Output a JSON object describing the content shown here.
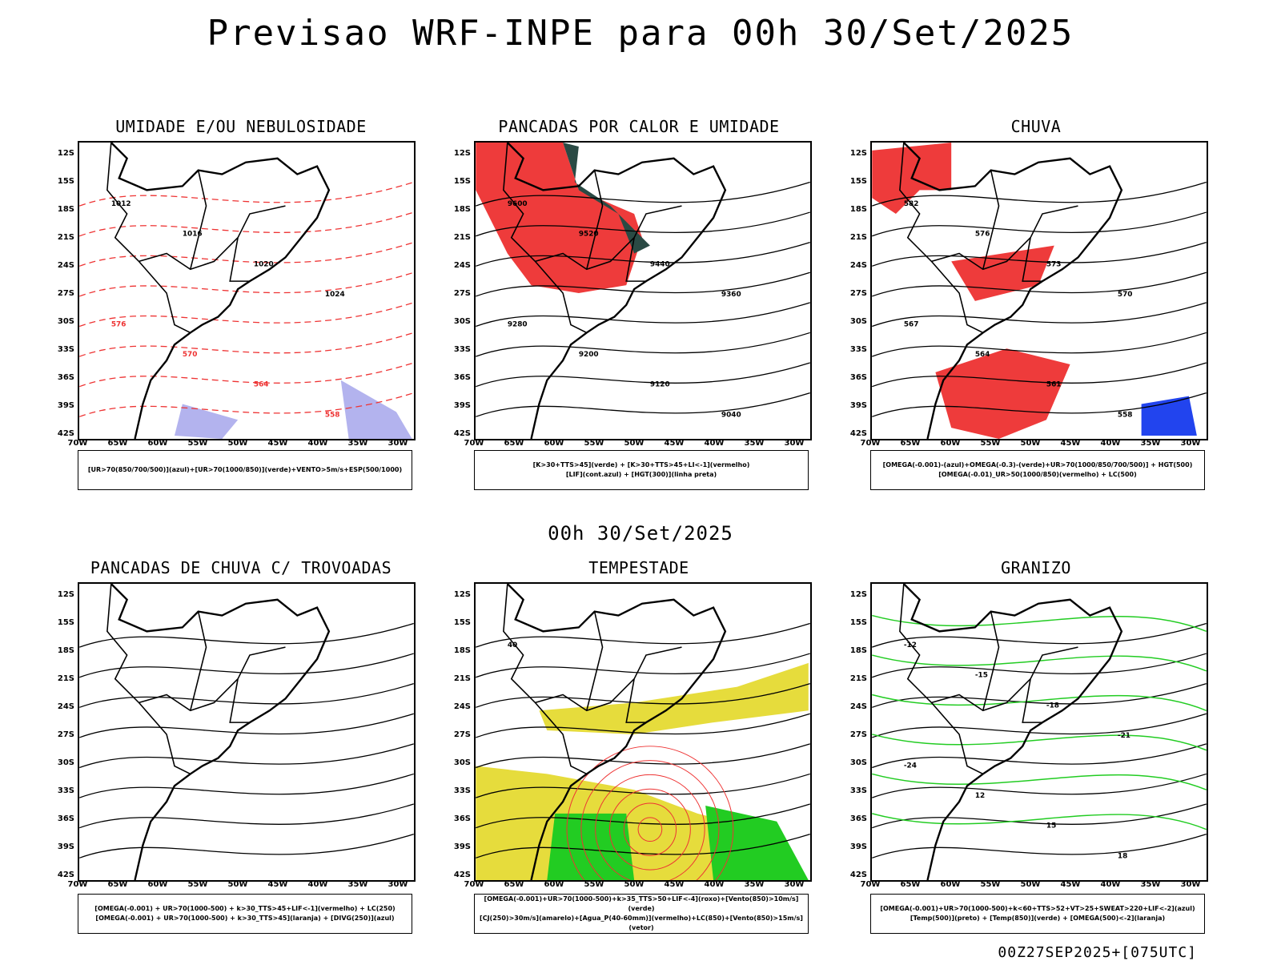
{
  "header": {
    "title": "Previsao WRF-INPE  para 00h 30/Set/2025",
    "mid_title": "00h 30/Set/2025",
    "footer": "00Z27SEP2025+[075UTC]"
  },
  "axes": {
    "lat_labels": [
      "12S",
      "15S",
      "18S",
      "21S",
      "24S",
      "27S",
      "30S",
      "33S",
      "36S",
      "39S",
      "42S"
    ],
    "lon_labels": [
      "70W",
      "65W",
      "60W",
      "55W",
      "50W",
      "45W",
      "40W",
      "35W",
      "30W"
    ]
  },
  "panels": [
    {
      "title": "UMIDADE E/OU NEBULOSIDADE",
      "legend": [
        "[UR>70(850/700/500)](azul)+[UR>70(1000/850)](verde)+VENTO>5m/s+ESP(500/1000)"
      ],
      "contour_labels": [
        "1012",
        "1016",
        "1020",
        "1024",
        "576",
        "570",
        "564",
        "558"
      ],
      "colors": {
        "fill": "#b3b3ee",
        "green": "#22cc22",
        "red": "#ee3333"
      }
    },
    {
      "title": "PANCADAS POR CALOR E UMIDADE",
      "legend": [
        "[K>30+TTS>45](verde) + [K>30+TTS>45+LI<-1](vermelho)",
        "[LIF](cont.azul) + [HGT(300)](linha preta)"
      ],
      "contour_labels": [
        "9600",
        "9520",
        "9440",
        "9360",
        "9280",
        "9200",
        "9120",
        "9040"
      ],
      "colors": {
        "fill": "#ee3b3b",
        "green": "#2a4a44",
        "blue": "#2244ee"
      }
    },
    {
      "title": "CHUVA",
      "legend": [
        "[OMEGA(-0.001)-(azul)+OMEGA(-0.3)-(verde)+UR>70(1000/850/700/500)] + HGT(500)",
        "[OMEGA(-0.01)_UR>50(1000/850)(vermelho) + LC(500)"
      ],
      "contour_labels": [
        "582",
        "576",
        "573",
        "570",
        "567",
        "564",
        "561",
        "558"
      ],
      "colors": {
        "fill": "#ee3b3b",
        "blue": "#2244ee",
        "green": "#22cc22"
      }
    },
    {
      "title": "PANCADAS DE CHUVA C/ TROVOADAS",
      "legend": [
        "[OMEGA(-0.001) + UR>70(1000-500) + k>30_TTS>45+LIF<-1](vermelho) + LC(250)",
        "[OMEGA(-0.001) + UR>70(1000-500) + k>30_TTS>45](laranja) + [DIVG(250)](azul)"
      ],
      "contour_labels": [],
      "colors": {
        "fill": "#ee3b3b",
        "blue": "#2244ee",
        "orange": "#ee8822"
      }
    },
    {
      "title": "TEMPESTADE",
      "legend": [
        "[OMEGA(-0.001)+UR>70(1000-500)+k>35_TTS>50+LIF<-4](roxo)+[Vento(850)>10m/s](verde)",
        "[CJ(250)>30m/s](amarelo)+[Agua_P(40-60mm)](vermelho)+LC(850)+[Vento(850)>15m/s](vetor)"
      ],
      "contour_labels": [
        "40"
      ],
      "colors": {
        "yellow": "#e6dc3c",
        "green": "#22cc22",
        "red": "#ee3333",
        "purple": "#9922cc"
      }
    },
    {
      "title": "GRANIZO",
      "legend": [
        "[OMEGA(-0.001)+UR>70(1000-500)+k<60+TTS>52+VT>25+SWEAT>220+LIF<-2](azul)",
        "[Temp(500)](preto) + [Temp(850)](verde) + [OMEGA(500)<-2](laranja)"
      ],
      "contour_labels": [
        "-12",
        "-15",
        "-18",
        "-21",
        "-24",
        "12",
        "15",
        "18"
      ],
      "colors": {
        "green": "#22cc22",
        "blue": "#2244ee",
        "orange": "#ee8822"
      }
    }
  ]
}
